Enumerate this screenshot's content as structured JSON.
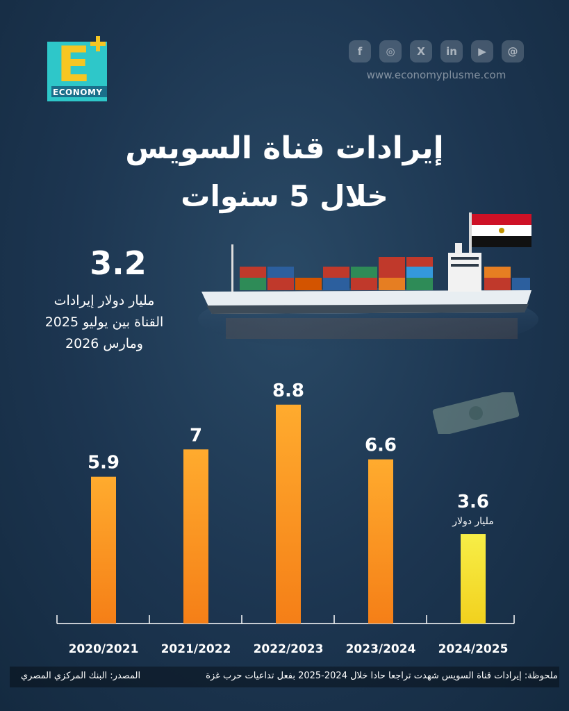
{
  "brand": {
    "logo_letter": "E",
    "logo_word": "ECONOMY",
    "website": "www.economyplusme.com",
    "social_icons": [
      "facebook-icon",
      "instagram-icon",
      "x-icon",
      "linkedin-icon",
      "youtube-icon",
      "threads-icon"
    ],
    "social_glyphs": [
      "f",
      "◎",
      "X",
      "in",
      "▶",
      "@"
    ]
  },
  "title_line1": "إيرادات قناة السويس",
  "title_line2": "خلال 5 سنوات",
  "highlight": {
    "value": "3.2",
    "text": "مليار دولار إيرادات القناة بين يوليو 2025 ومارس 2026"
  },
  "chart_data": {
    "type": "bar",
    "categories": [
      "2020/2021",
      "2021/2022",
      "2022/2023",
      "2023/2024",
      "2024/2025"
    ],
    "values": [
      5.9,
      7,
      8.8,
      6.6,
      3.6
    ],
    "value_labels": [
      "5.9",
      "7",
      "8.8",
      "6.6",
      "3.6"
    ],
    "unit_annotation": "مليار دولار",
    "unit_annotation_index": 4,
    "ylim": [
      0,
      10
    ],
    "grid": false,
    "colors": {
      "bar_gradient_top": "#ffab2e",
      "bar_gradient_bottom": "#f57f17",
      "highlight_top": "#f7ee47",
      "highlight_bottom": "#f2d11e",
      "axis": "#ffffff"
    }
  },
  "footer": {
    "note": "ملحوظة: إيرادات قناة السويس شهدت تراجعا حادا خلال 2024-2025 بفعل تداعيات حرب غزة",
    "source": "المصدر: البنك المركزي المصري"
  },
  "flag_colors": [
    "#ce1126",
    "#ffffff",
    "#000000"
  ]
}
